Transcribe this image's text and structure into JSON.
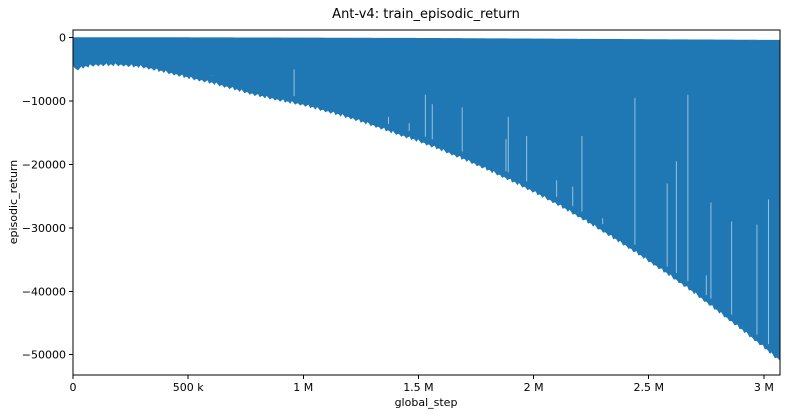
{
  "chart_data": {
    "type": "line",
    "title": "Ant-v4: train_episodic_return",
    "xlabel": "global_step",
    "ylabel": "episodic_return",
    "xlim": [
      0,
      3070000
    ],
    "ylim": [
      -53200,
      1200
    ],
    "x_ticks": [
      {
        "value": 0,
        "label": "0"
      },
      {
        "value": 500000,
        "label": "500 k"
      },
      {
        "value": 1000000,
        "label": "1 M"
      },
      {
        "value": 1500000,
        "label": "1.5 M"
      },
      {
        "value": 2000000,
        "label": "2 M"
      },
      {
        "value": 2500000,
        "label": "2.5 M"
      },
      {
        "value": 3000000,
        "label": "3 M"
      }
    ],
    "y_ticks": [
      {
        "value": 0,
        "label": "0"
      },
      {
        "value": -10000,
        "label": "−10000"
      },
      {
        "value": -20000,
        "label": "−20000"
      },
      {
        "value": -30000,
        "label": "−30000"
      },
      {
        "value": -40000,
        "label": "−40000"
      },
      {
        "value": -50000,
        "label": "−50000"
      }
    ],
    "grid": false,
    "series": [
      {
        "color": "#1f77b4",
        "upper_envelope": {
          "x": [
            0,
            500000,
            1000000,
            1500000,
            2000000,
            2500000,
            3000000,
            3070000
          ],
          "y": [
            0,
            0,
            -50,
            -100,
            -200,
            -300,
            -400,
            -400
          ]
        },
        "lower_envelope": {
          "x": [
            0,
            10000,
            50000,
            100000,
            200000,
            300000,
            400000,
            500000,
            600000,
            700000,
            800000,
            900000,
            1000000,
            1100000,
            1200000,
            1300000,
            1400000,
            1500000,
            1600000,
            1700000,
            1800000,
            1900000,
            2000000,
            2100000,
            2200000,
            2300000,
            2400000,
            2500000,
            2600000,
            2700000,
            2800000,
            2900000,
            3000000,
            3050000,
            3070000
          ],
          "y": [
            -4000,
            -5000,
            -4500,
            -4200,
            -4200,
            -4500,
            -5300,
            -6200,
            -7000,
            -8000,
            -9000,
            -9800,
            -10500,
            -11500,
            -12500,
            -13700,
            -15000,
            -16200,
            -17600,
            -19100,
            -20700,
            -22400,
            -24200,
            -26100,
            -28200,
            -30400,
            -32700,
            -35100,
            -37600,
            -40200,
            -43000,
            -45800,
            -48700,
            -50300,
            -50700
          ]
        },
        "spikes": [
          {
            "x": 605000,
            "y": -6000
          },
          {
            "x": 960000,
            "y": -5000
          },
          {
            "x": 1370000,
            "y": -12500
          },
          {
            "x": 1460000,
            "y": -13500
          },
          {
            "x": 1530000,
            "y": -9000
          },
          {
            "x": 1560000,
            "y": -10500
          },
          {
            "x": 1690000,
            "y": -11000
          },
          {
            "x": 1880000,
            "y": -16000
          },
          {
            "x": 1890000,
            "y": -12500
          },
          {
            "x": 1970000,
            "y": -15500
          },
          {
            "x": 2100000,
            "y": -22500
          },
          {
            "x": 2170000,
            "y": -23500
          },
          {
            "x": 2210000,
            "y": -15500
          },
          {
            "x": 2300000,
            "y": -28500
          },
          {
            "x": 2440000,
            "y": -9500
          },
          {
            "x": 2580000,
            "y": -23000
          },
          {
            "x": 2620000,
            "y": -19500
          },
          {
            "x": 2670000,
            "y": -9000
          },
          {
            "x": 2750000,
            "y": -37500
          },
          {
            "x": 2770000,
            "y": -26000
          },
          {
            "x": 2860000,
            "y": -29000
          },
          {
            "x": 2970000,
            "y": -29500
          },
          {
            "x": 3020000,
            "y": -25500
          }
        ]
      }
    ]
  }
}
